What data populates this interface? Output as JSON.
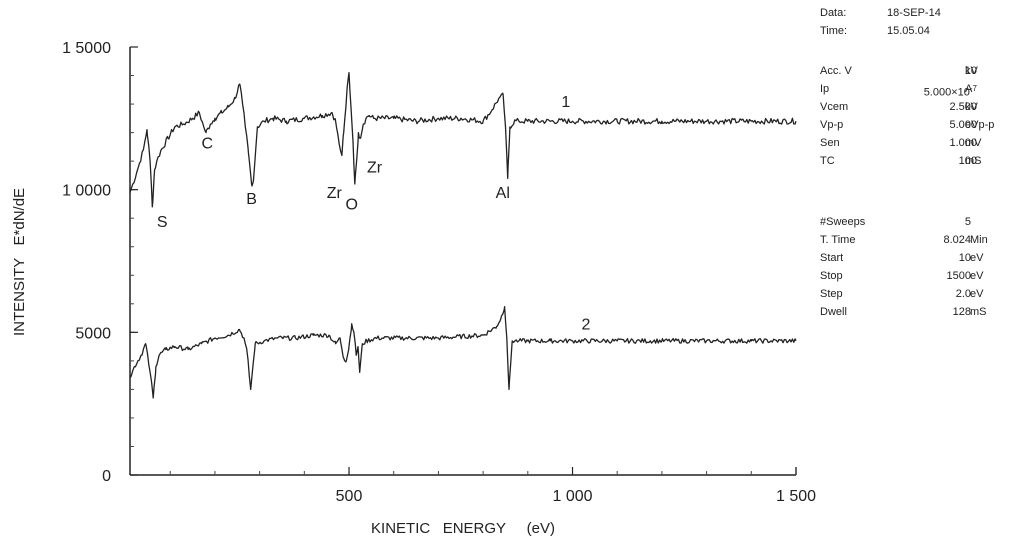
{
  "chart_data": {
    "type": "line",
    "xlabel": "KINETIC   ENERGY     (eV)",
    "ylabel": "INTENSITY   E*dN/dE",
    "xlim": [
      10,
      1500
    ],
    "ylim": [
      0,
      15000
    ],
    "x_ticks": [
      {
        "value": 500,
        "label": "500"
      },
      {
        "value": 1000,
        "label": "1 000"
      },
      {
        "value": 1500,
        "label": "1 500"
      }
    ],
    "y_ticks": [
      {
        "value": 0,
        "label": "0"
      },
      {
        "value": 5000,
        "label": "5000"
      },
      {
        "value": 10000,
        "label": "1 0000"
      },
      {
        "value": 15000,
        "label": "1 5000"
      }
    ],
    "grid": false,
    "series": [
      {
        "name": "1",
        "color": "#222222",
        "x": [
          10,
          25,
          40,
          48,
          55,
          60,
          65,
          70,
          80,
          95,
          110,
          130,
          150,
          165,
          175,
          180,
          190,
          200,
          215,
          230,
          245,
          255,
          262,
          268,
          275,
          282,
          286,
          295,
          310,
          330,
          360,
          400,
          440,
          462,
          470,
          478,
          484,
          488,
          493,
          496,
          500,
          505,
          509,
          513,
          517,
          521,
          525,
          532,
          538,
          545,
          555,
          570,
          600,
          650,
          700,
          750,
          800,
          820,
          835,
          845,
          850,
          855,
          860,
          870,
          880,
          900,
          950,
          1000,
          1100,
          1200,
          1300,
          1400,
          1500
        ],
        "y": [
          9900,
          10600,
          11400,
          12100,
          11000,
          9400,
          10700,
          11000,
          11400,
          11800,
          12200,
          12300,
          12500,
          12700,
          12200,
          12000,
          12300,
          12500,
          12700,
          12900,
          13200,
          13700,
          13000,
          12200,
          11300,
          10200,
          10300,
          12200,
          12400,
          12500,
          12400,
          12500,
          12600,
          12700,
          12400,
          11600,
          11200,
          12000,
          12900,
          13600,
          14100,
          12700,
          11700,
          10200,
          11000,
          12000,
          11800,
          12300,
          12500,
          12600,
          12500,
          12500,
          12500,
          12400,
          12500,
          12500,
          12400,
          12800,
          13200,
          13300,
          12200,
          10400,
          12200,
          12400,
          12400,
          12400,
          12400,
          12400,
          12400,
          12400,
          12400,
          12400,
          12400
        ],
        "noise": 100
      },
      {
        "name": "2",
        "color": "#222222",
        "x": [
          10,
          20,
          35,
          45,
          55,
          62,
          68,
          75,
          90,
          110,
          140,
          170,
          200,
          230,
          255,
          265,
          272,
          280,
          290,
          310,
          340,
          380,
          420,
          455,
          470,
          480,
          488,
          494,
          500,
          506,
          511,
          516,
          520,
          524,
          530,
          540,
          560,
          600,
          700,
          800,
          830,
          840,
          848,
          853,
          858,
          865,
          880,
          900,
          950,
          1000,
          1100,
          1200,
          1300,
          1400,
          1500
        ],
        "y": [
          3400,
          3800,
          4200,
          4600,
          3600,
          2700,
          3800,
          4200,
          4400,
          4500,
          4400,
          4600,
          4800,
          4900,
          5100,
          4800,
          4300,
          3000,
          4600,
          4700,
          4800,
          4800,
          4900,
          4900,
          4600,
          4800,
          4100,
          4000,
          4500,
          5300,
          5000,
          4200,
          4500,
          3600,
          4600,
          4700,
          4800,
          4800,
          4800,
          4900,
          5200,
          5500,
          5900,
          4800,
          3000,
          4700,
          4700,
          4700,
          4700,
          4700,
          4700,
          4700,
          4700,
          4700,
          4700
        ],
        "noise": 80
      }
    ],
    "annotations": [
      {
        "text": "1",
        "x": 985,
        "y": 12900
      },
      {
        "text": "2",
        "x": 1030,
        "y": 5100
      },
      {
        "text": "C",
        "x": 183,
        "y": 11450
      },
      {
        "text": "S",
        "x": 82,
        "y": 8700
      },
      {
        "text": "B",
        "x": 282,
        "y": 9500
      },
      {
        "text": "Zr",
        "x": 467,
        "y": 9700
      },
      {
        "text": "O",
        "x": 506,
        "y": 9300
      },
      {
        "text": "Zr",
        "x": 557,
        "y": 10600
      },
      {
        "text": "Al",
        "x": 844,
        "y": 9700
      }
    ]
  },
  "info_header": [
    {
      "key": "Data:",
      "value": "18-SEP-14"
    },
    {
      "key": "Time:",
      "value": "15.05.04"
    }
  ],
  "instrument": [
    {
      "key": "Acc. V",
      "value": "10",
      "unit": "kV"
    },
    {
      "key": "Ip",
      "value": "5.000×10",
      "exp": "-7",
      "unit": "A"
    },
    {
      "key": "Vcem",
      "value": "2.500",
      "unit": "kV"
    },
    {
      "key": "Vp-p",
      "value": "5.000",
      "unit": "eVp-p"
    },
    {
      "key": "Sen",
      "value": "1.000",
      "unit": "mV"
    },
    {
      "key": "TC",
      "value": "100",
      "unit": "mS"
    }
  ],
  "scan": [
    {
      "key": "#Sweeps",
      "value": "5",
      "unit": ""
    },
    {
      "key": "T. Time",
      "value": "8.024",
      "unit": "Min"
    },
    {
      "key": "Start",
      "value": "10",
      "unit": "eV"
    },
    {
      "key": "Stop",
      "value": "1500",
      "unit": "eV"
    },
    {
      "key": "Step",
      "value": "2.0",
      "unit": "eV"
    },
    {
      "key": "Dwell",
      "value": "128",
      "unit": "mS"
    }
  ]
}
